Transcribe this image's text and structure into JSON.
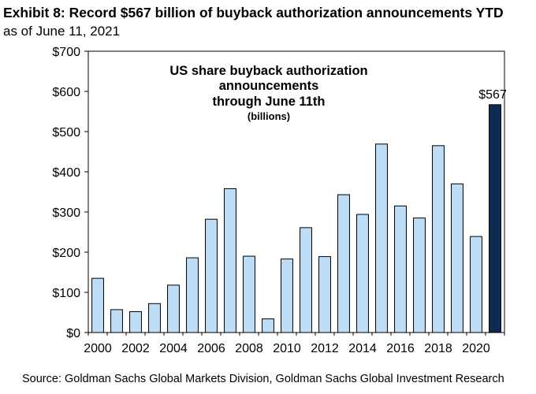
{
  "header": {
    "title": "Exhibit 8: Record $567 billion of buyback authorization announcements YTD",
    "subtitle": "as of June 11, 2021"
  },
  "footer": {
    "source": "Source: Goldman Sachs Global Markets Division, Goldman Sachs Global Investment Research"
  },
  "chart_data": {
    "type": "bar",
    "title_lines": [
      "US share buyback authorization",
      "announcements",
      "through June 11th"
    ],
    "units_line": "(billions)",
    "categories": [
      "2000",
      "2001",
      "2002",
      "2003",
      "2004",
      "2005",
      "2006",
      "2007",
      "2008",
      "2009",
      "2010",
      "2011",
      "2012",
      "2013",
      "2014",
      "2015",
      "2016",
      "2017",
      "2018",
      "2019",
      "2020",
      "2021"
    ],
    "values": [
      135,
      57,
      52,
      72,
      118,
      186,
      282,
      358,
      190,
      34,
      183,
      261,
      189,
      343,
      294,
      469,
      315,
      285,
      465,
      370,
      239,
      567
    ],
    "x_tick_labels": [
      "2000",
      "2002",
      "2004",
      "2006",
      "2008",
      "2010",
      "2012",
      "2014",
      "2016",
      "2018",
      "2020"
    ],
    "y_tick_labels": [
      "$0",
      "$100",
      "$200",
      "$300",
      "$400",
      "$500",
      "$600",
      "$700"
    ],
    "ylim": [
      0,
      700
    ],
    "annotation": "$567",
    "colors": {
      "bar": "#bddcf5",
      "highlight": "#0b2c52",
      "outline": "#000000"
    }
  }
}
